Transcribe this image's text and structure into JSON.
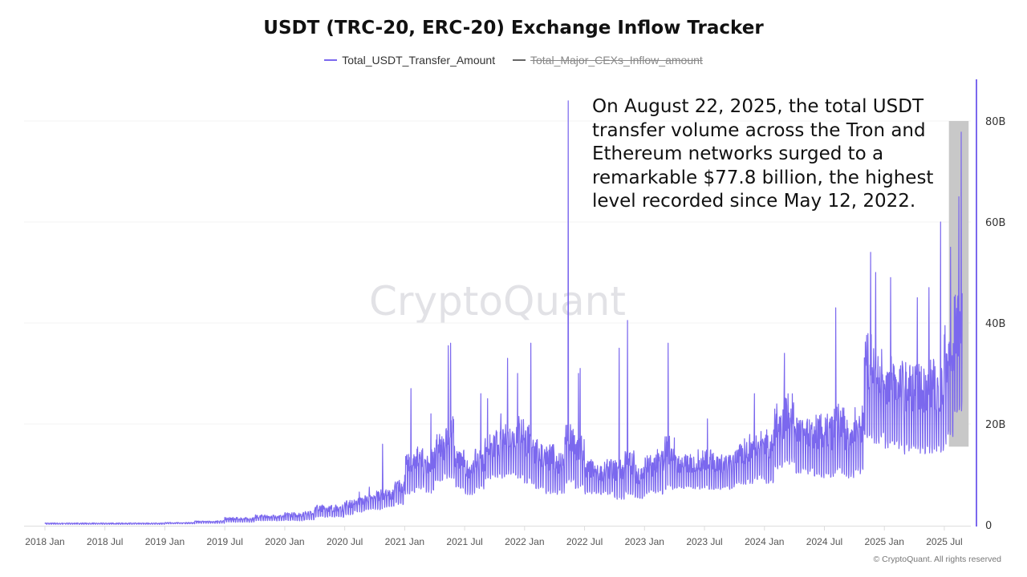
{
  "title": "USDT (TRC-20, ERC-20) Exchange Inflow Tracker",
  "watermark": "CryptoQuant",
  "copyright": "© CryptoQuant. All rights reserved",
  "annotation": "On August 22, 2025, the total USDT transfer volume across the Tron and Ethereum networks surged to a remarkable $77.8 billion, the highest level recorded since May 12, 2022.",
  "colors": {
    "series": "#7b68ee",
    "legend_inactive": "#666666",
    "highlight": "#c8c8c8"
  },
  "chart_data": {
    "type": "line",
    "title": "USDT (TRC-20, ERC-20) Exchange Inflow Tracker",
    "legend_placement": "top",
    "legend": [
      {
        "name": "Total_USDT_Transfer_Amount",
        "active": true,
        "color": "#7b68ee"
      },
      {
        "name": "Total_Major_CEXs_Inflow_amount",
        "active": false,
        "color": "#666666"
      }
    ],
    "y_axis": {
      "side": "right",
      "range": [
        0,
        88000000000
      ],
      "ticks": [
        0,
        20000000000,
        40000000000,
        60000000000,
        80000000000
      ],
      "tick_labels": [
        "0",
        "20B",
        "40B",
        "60B",
        "80B"
      ],
      "grid": true
    },
    "x_axis": {
      "range": [
        "2017-12-15",
        "2025-09-20"
      ],
      "tick_labels": [
        "2018 Jan",
        "2018 Jul",
        "2019 Jan",
        "2019 Jul",
        "2020 Jan",
        "2020 Jul",
        "2021 Jan",
        "2021 Jul",
        "2022 Jan",
        "2022 Jul",
        "2023 Jan",
        "2023 Jul",
        "2024 Jan",
        "2024 Jul",
        "2025 Jan",
        "2025 Jul"
      ],
      "tick_dates": [
        "2018-01-01",
        "2018-07-01",
        "2019-01-01",
        "2019-07-01",
        "2020-01-01",
        "2020-07-01",
        "2021-01-01",
        "2021-07-01",
        "2022-01-01",
        "2022-07-01",
        "2023-01-01",
        "2023-07-01",
        "2024-01-01",
        "2024-07-01",
        "2025-01-01",
        "2025-07-01"
      ]
    },
    "unit": "B USD",
    "series_name": "Total_USDT_Transfer_Amount",
    "monthly_range_billions": [
      [
        "2018-01",
        0.1,
        0.4
      ],
      [
        "2018-02",
        0.1,
        0.4
      ],
      [
        "2018-03",
        0.1,
        0.4
      ],
      [
        "2018-04",
        0.1,
        0.4
      ],
      [
        "2018-05",
        0.1,
        0.4
      ],
      [
        "2018-06",
        0.1,
        0.4
      ],
      [
        "2018-07",
        0.1,
        0.4
      ],
      [
        "2018-08",
        0.1,
        0.4
      ],
      [
        "2018-09",
        0.1,
        0.4
      ],
      [
        "2018-10",
        0.1,
        0.4
      ],
      [
        "2018-11",
        0.1,
        0.4
      ],
      [
        "2018-12",
        0.1,
        0.4
      ],
      [
        "2019-01",
        0.2,
        0.5
      ],
      [
        "2019-02",
        0.2,
        0.5
      ],
      [
        "2019-03",
        0.2,
        0.5
      ],
      [
        "2019-04",
        0.3,
        0.8
      ],
      [
        "2019-05",
        0.3,
        0.8
      ],
      [
        "2019-06",
        0.3,
        0.9
      ],
      [
        "2019-07",
        0.5,
        1.5
      ],
      [
        "2019-08",
        0.5,
        1.5
      ],
      [
        "2019-09",
        0.5,
        1.5
      ],
      [
        "2019-10",
        0.8,
        2
      ],
      [
        "2019-11",
        0.8,
        2
      ],
      [
        "2019-12",
        0.8,
        2
      ],
      [
        "2020-01",
        0.8,
        2.5
      ],
      [
        "2020-02",
        0.8,
        2.5
      ],
      [
        "2020-03",
        1,
        3
      ],
      [
        "2020-04",
        1.5,
        4
      ],
      [
        "2020-05",
        1.5,
        4
      ],
      [
        "2020-06",
        1.5,
        4
      ],
      [
        "2020-07",
        2,
        5
      ],
      [
        "2020-08",
        2.5,
        5.5
      ],
      [
        "2020-09",
        3,
        6
      ],
      [
        "2020-10",
        3,
        7
      ],
      [
        "2020-11",
        3.5,
        7
      ],
      [
        "2020-12",
        4,
        9
      ],
      [
        "2021-01",
        6,
        14
      ],
      [
        "2021-02",
        7,
        16
      ],
      [
        "2021-03",
        6,
        15
      ],
      [
        "2021-04",
        8,
        18
      ],
      [
        "2021-05",
        9,
        22
      ],
      [
        "2021-06",
        7,
        15
      ],
      [
        "2021-07",
        6,
        13
      ],
      [
        "2021-08",
        7,
        15
      ],
      [
        "2021-09",
        9,
        18
      ],
      [
        "2021-10",
        9,
        19
      ],
      [
        "2021-11",
        10,
        20
      ],
      [
        "2021-12",
        9,
        22
      ],
      [
        "2022-01",
        8,
        20
      ],
      [
        "2022-02",
        7,
        17
      ],
      [
        "2022-03",
        6,
        16
      ],
      [
        "2022-04",
        6,
        15
      ],
      [
        "2022-05",
        8,
        20
      ],
      [
        "2022-06",
        7,
        18
      ],
      [
        "2022-07",
        6,
        13
      ],
      [
        "2022-08",
        6,
        12
      ],
      [
        "2022-09",
        6,
        13
      ],
      [
        "2022-10",
        5,
        13
      ],
      [
        "2022-11",
        6,
        15
      ],
      [
        "2022-12",
        5,
        12
      ],
      [
        "2023-01",
        6,
        14
      ],
      [
        "2023-02",
        6,
        15
      ],
      [
        "2023-03",
        7,
        18
      ],
      [
        "2023-04",
        7,
        14
      ],
      [
        "2023-05",
        7,
        14
      ],
      [
        "2023-06",
        7,
        15
      ],
      [
        "2023-07",
        7,
        15
      ],
      [
        "2023-08",
        7,
        14
      ],
      [
        "2023-09",
        7,
        14
      ],
      [
        "2023-10",
        8,
        16
      ],
      [
        "2023-11",
        8,
        18
      ],
      [
        "2023-12",
        9,
        19
      ],
      [
        "2024-01",
        8,
        19
      ],
      [
        "2024-02",
        11,
        24
      ],
      [
        "2024-03",
        12,
        26
      ],
      [
        "2024-04",
        10,
        22
      ],
      [
        "2024-05",
        10,
        21
      ],
      [
        "2024-06",
        9,
        22
      ],
      [
        "2024-07",
        9,
        22
      ],
      [
        "2024-08",
        10,
        24
      ],
      [
        "2024-09",
        9,
        22
      ],
      [
        "2024-10",
        10,
        24
      ],
      [
        "2024-11",
        17,
        38
      ],
      [
        "2024-12",
        16,
        36
      ],
      [
        "2025-01",
        15,
        34
      ],
      [
        "2025-02",
        15,
        33
      ],
      [
        "2025-03",
        14,
        33
      ],
      [
        "2025-04",
        14,
        32
      ],
      [
        "2025-05",
        14,
        33
      ],
      [
        "2025-06",
        14,
        32
      ],
      [
        "2025-07",
        16,
        40
      ],
      [
        "2025-08",
        22,
        46
      ]
    ],
    "spikes_billions": [
      [
        "2020-08-15",
        6.5
      ],
      [
        "2020-09-15",
        7.5
      ],
      [
        "2020-10-25",
        16
      ],
      [
        "2021-01-20",
        27
      ],
      [
        "2021-03-20",
        22
      ],
      [
        "2021-05-12",
        35.5
      ],
      [
        "2021-05-19",
        36
      ],
      [
        "2021-08-20",
        26
      ],
      [
        "2021-09-10",
        25
      ],
      [
        "2021-10-20",
        22
      ],
      [
        "2021-11-10",
        33
      ],
      [
        "2021-12-10",
        30
      ],
      [
        "2022-01-20",
        36
      ],
      [
        "2022-05-12",
        84
      ],
      [
        "2022-06-13",
        30
      ],
      [
        "2022-06-18",
        31
      ],
      [
        "2022-10-15",
        35
      ],
      [
        "2022-11-10",
        40.5
      ],
      [
        "2023-03-12",
        36
      ],
      [
        "2023-07-10",
        21
      ],
      [
        "2023-12-01",
        26
      ],
      [
        "2024-03-01",
        34
      ],
      [
        "2024-08-05",
        43
      ],
      [
        "2024-11-20",
        54
      ],
      [
        "2024-12-05",
        50
      ],
      [
        "2025-01-20",
        49
      ],
      [
        "2025-04-10",
        45
      ],
      [
        "2025-05-15",
        47
      ],
      [
        "2025-06-20",
        60
      ],
      [
        "2025-07-20",
        55
      ],
      [
        "2025-08-15",
        65
      ],
      [
        "2025-08-22",
        77.8
      ]
    ],
    "last_date": "2025-08-25",
    "highlight": {
      "from": "2025-07-15",
      "to": "2025-08-25",
      "y_range_billions": [
        15.5,
        80
      ]
    }
  }
}
